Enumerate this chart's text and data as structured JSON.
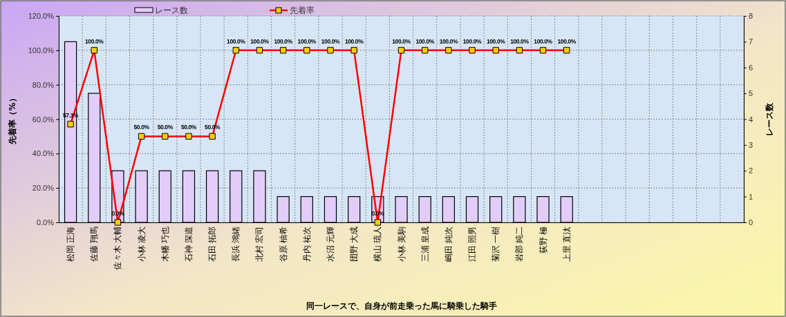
{
  "chart_data": {
    "type": "bar",
    "xlabel": "同一レースで、自身が前走乗った馬に騎乗した騎手",
    "ylabel": "先着率（%）",
    "y2label": "レース数",
    "categories": [
      "松岡 正海",
      "佐藤 翔馬",
      "佐々木 大輔",
      "小林 凌大",
      "木幡 巧也",
      "石神 深道",
      "石田 拓郎",
      "長浜 鴻緒",
      "北村 宏司",
      "谷原 柚希",
      "丹内 祐次",
      "水沼 元輝",
      "団野 大成",
      "横山 琉人",
      "小林 美駒",
      "三浦 皇成",
      "嶋田 純次",
      "江田 照男",
      "菊沢 一樹",
      "岩部 純二",
      "荻野 極",
      "上里 直汰",
      null,
      null,
      null,
      null,
      null,
      null,
      null
    ],
    "series": [
      {
        "name": "レース数",
        "axis": "y2",
        "color": "#e2ccf8",
        "values": [
          7,
          5,
          2,
          2,
          2,
          2,
          2,
          2,
          2,
          1,
          1,
          1,
          1,
          1,
          1,
          1,
          1,
          1,
          1,
          1,
          1,
          1,
          null,
          null,
          null,
          null,
          null,
          null,
          null
        ]
      },
      {
        "name": "先着率",
        "type": "line",
        "color": "#ff0000",
        "marker": "square",
        "line_style": "solid",
        "values": [
          57.1,
          100,
          0,
          50,
          50,
          50,
          50,
          100,
          100,
          100,
          100,
          100,
          100,
          0,
          100,
          100,
          100,
          100,
          100,
          100,
          100,
          100,
          null,
          null,
          null,
          null,
          null,
          null,
          null
        ],
        "value_labels": [
          "57.1%",
          "100.0%",
          "0.0%",
          "50.0%",
          "50.0%",
          "50.0%",
          "50.0%",
          "100.0%",
          "100.0%",
          "100.0%",
          "100.0%",
          "100.0%",
          "100.0%",
          "0.0%",
          "100.0%",
          "100.0%",
          "100.0%",
          "100.0%",
          "100.0%",
          "100.0%",
          "100.0%",
          "100.0%",
          null,
          null,
          null,
          null,
          null,
          null,
          null
        ]
      }
    ],
    "ylim": [
      0,
      120
    ],
    "yticks": [
      {
        "value": 0,
        "label": "0.0%"
      },
      {
        "value": 20,
        "label": "20.0%"
      },
      {
        "value": 40,
        "label": "40.0%"
      },
      {
        "value": 60,
        "label": "60.0%"
      },
      {
        "value": 80,
        "label": "80.0%"
      },
      {
        "value": 100,
        "label": "100.0%"
      },
      {
        "value": 120,
        "label": "120.0%"
      }
    ],
    "y2lim": [
      0,
      8
    ],
    "y2ticks": [
      0,
      1,
      2,
      3,
      4,
      5,
      6,
      7,
      8
    ],
    "grid": true,
    "legend": "top"
  }
}
